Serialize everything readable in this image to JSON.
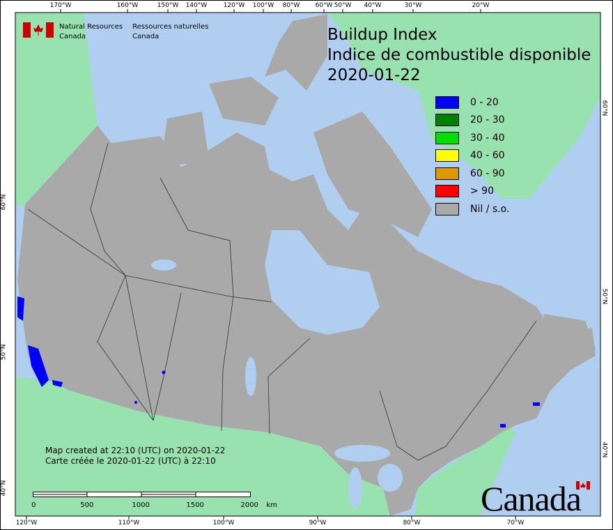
{
  "title": {
    "line1": "Buildup Index",
    "line2": "Indice de combustible disponible",
    "date": "2020-01-22"
  },
  "agency": {
    "en_line1": "Natural Resources",
    "en_line2": "Canada",
    "fr_line1": "Ressources naturelles",
    "fr_line2": "Canada"
  },
  "legend": [
    {
      "label": "0 - 20",
      "color": "#0000ff"
    },
    {
      "label": "20 - 30",
      "color": "#007f00"
    },
    {
      "label": "30 - 40",
      "color": "#00dd00"
    },
    {
      "label": "40 - 60",
      "color": "#ffff00"
    },
    {
      "label": "60 - 90",
      "color": "#dd9900"
    },
    {
      "label": "> 90",
      "color": "#ff0000"
    },
    {
      "label": "Nil / s.o.",
      "color": "#a9a9a9"
    }
  ],
  "created": {
    "en": "Map created at 22:10 (UTC) on 2020-01-22",
    "fr": "Carte créée le 2020-01-22 (UTC) à 22:10"
  },
  "scale": {
    "labels": [
      "0",
      "500",
      "1000",
      "1500",
      "2000"
    ],
    "unit": "km"
  },
  "top_ticks": [
    "170°W",
    "160°W",
    "150°W",
    "140°W",
    "120°W",
    "100°W",
    "80°W",
    "60°W",
    "50°W",
    "40°W",
    "30°W",
    "20°W"
  ],
  "bottom_ticks": [
    "120°W",
    "110°W",
    "100°W",
    "90°W",
    "80°W",
    "70°W"
  ],
  "left_ticks": [
    "60°N",
    "50°N",
    "40°N"
  ],
  "right_ticks": [
    "60°N",
    "50°N",
    "40°N"
  ],
  "wordmark": "Canada",
  "colors": {
    "water": "#b0cff0",
    "other_land": "#98e2b0",
    "canada_land": "#a9a9a9"
  }
}
